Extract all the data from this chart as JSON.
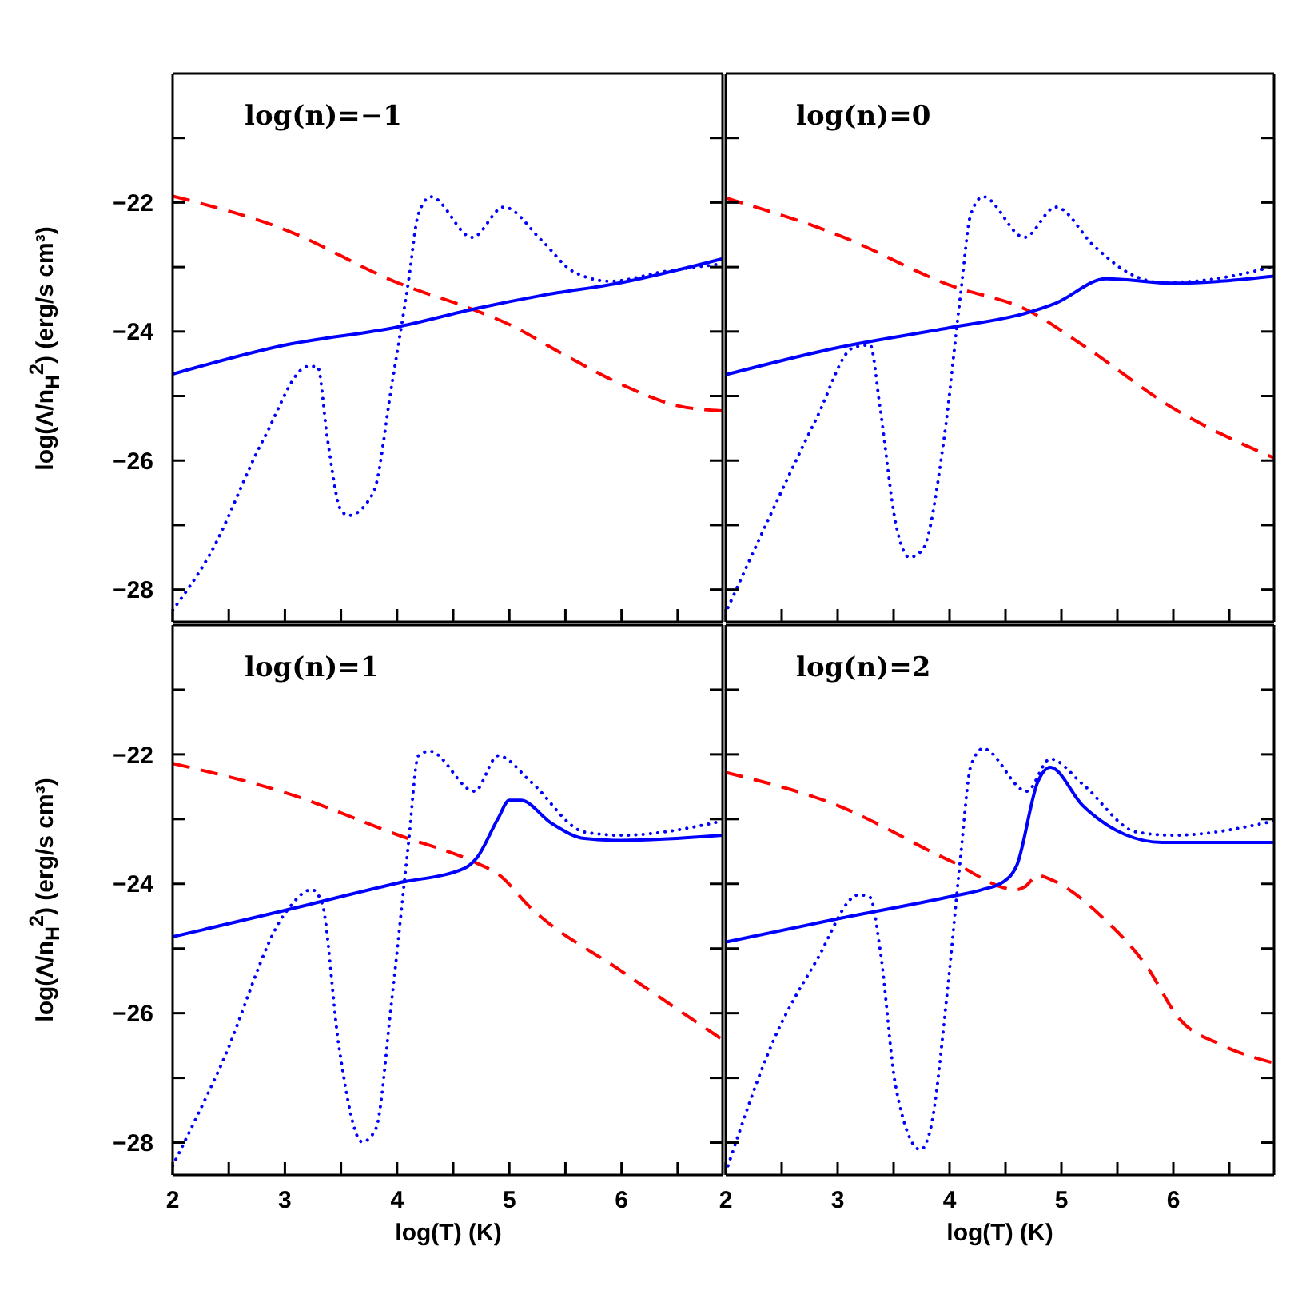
{
  "chart_data": [
    {
      "type": "line",
      "annotations": [
        "log(n)=−1"
      ],
      "ylabel": "log(Λ/n$_{H}$$^{2}$) (erg/s cm³)",
      "tick_labels": "y",
      "xlim": [
        2,
        6.9
      ],
      "xticks": [
        2,
        {
          "value": 2.5,
          "label": null
        },
        3,
        {
          "value": 3.5,
          "label": null
        },
        4,
        {
          "value": 4.5,
          "label": null
        },
        5,
        {
          "value": 5.5,
          "label": null
        },
        6,
        {
          "value": 6.5,
          "label": null
        }
      ],
      "ylim": [
        -28.5,
        -20
      ],
      "yticks": [
        {
          "value": -21,
          "label": null
        },
        -22,
        {
          "value": -23,
          "label": null
        },
        -24,
        {
          "value": -25,
          "label": null
        },
        -26,
        {
          "value": -27,
          "label": null
        },
        -28
      ],
      "series": [
        {
          "color": "#ff0000",
          "line_style": "dashed",
          "x": [
            2,
            3,
            4,
            4.71,
            5,
            5.5,
            6,
            6.5,
            6.9
          ],
          "values": [
            -21.9,
            -22.42,
            -23.24,
            -23.68,
            -23.89,
            -24.37,
            -24.82,
            -25.15,
            -25.23
          ]
        },
        {
          "color": "#0000ff",
          "line_style": "solid",
          "x": [
            2,
            3,
            4,
            4.71,
            5.29,
            6,
            6.9
          ],
          "values": [
            -24.66,
            -24.21,
            -23.93,
            -23.64,
            -23.44,
            -23.24,
            -22.87
          ]
        },
        {
          "color": "#0000ff",
          "line_style": "dotted",
          "x": [
            2,
            2.33,
            2.81,
            3.21,
            3.29,
            3.38,
            3.5,
            3.57,
            3.79,
            3.95,
            4.1,
            4.19,
            4.3,
            4.67,
            4.95,
            5.29,
            5.57,
            5.9,
            6.38,
            6.9
          ],
          "values": [
            -28.32,
            -27.46,
            -25.67,
            -24.54,
            -24.54,
            -25.67,
            -26.77,
            -26.85,
            -26.49,
            -24.86,
            -23.24,
            -22.18,
            -21.91,
            -22.54,
            -22.07,
            -22.59,
            -23.07,
            -23.22,
            -23.07,
            -22.95
          ]
        }
      ]
    },
    {
      "type": "line",
      "annotations": [
        "log(n)=0"
      ],
      "tick_labels": false,
      "xlim": [
        2,
        6.9
      ],
      "xticks": [
        2,
        {
          "value": 2.5,
          "label": null
        },
        3,
        {
          "value": 3.5,
          "label": null
        },
        4,
        {
          "value": 4.5,
          "label": null
        },
        5,
        {
          "value": 5.5,
          "label": null
        },
        6,
        {
          "value": 6.5,
          "label": null
        }
      ],
      "ylim": [
        -28.5,
        -20
      ],
      "yticks": [
        {
          "value": -21,
          "label": null
        },
        -22,
        {
          "value": -23,
          "label": null
        },
        -24,
        {
          "value": -25,
          "label": null
        },
        -26,
        {
          "value": -27,
          "label": null
        },
        -28
      ],
      "series": [
        {
          "color": "#ff0000",
          "line_style": "dashed",
          "x": [
            2,
            3,
            4,
            4.71,
            5.19,
            6,
            6.9
          ],
          "values": [
            -21.93,
            -22.5,
            -23.28,
            -23.68,
            -24.21,
            -25.19,
            -25.96
          ]
        },
        {
          "color": "#0000ff",
          "line_style": "solid",
          "x": [
            2,
            3,
            4,
            4.67,
            4.95,
            5.4,
            6,
            6.9
          ],
          "values": [
            -24.67,
            -24.25,
            -23.94,
            -23.72,
            -23.56,
            -23.18,
            -23.25,
            -23.14
          ]
        },
        {
          "color": "#0000ff",
          "line_style": "dotted",
          "x": [
            2.02,
            2.43,
            2.81,
            3.14,
            3.29,
            3.38,
            3.52,
            3.64,
            3.76,
            3.95,
            4.1,
            4.19,
            4.3,
            4.67,
            4.95,
            5.29,
            5.62,
            5.9,
            6.38,
            6.9
          ],
          "values": [
            -28.28,
            -26.73,
            -25.35,
            -24.25,
            -24.21,
            -25.19,
            -26.98,
            -27.5,
            -27.38,
            -25.67,
            -23.4,
            -22.18,
            -21.91,
            -22.54,
            -22.07,
            -22.67,
            -23.11,
            -23.24,
            -23.18,
            -22.99
          ]
        }
      ]
    },
    {
      "type": "line",
      "annotations": [
        "log(n)=1"
      ],
      "xlabel": "log(T) (K)",
      "ylabel": "log(Λ/n$_{H}$$^{2}$) (erg/s cm³)",
      "xlim": [
        2,
        6.9
      ],
      "xticks": [
        2,
        {
          "value": 2.5,
          "label": null
        },
        3,
        {
          "value": 3.5,
          "label": null
        },
        4,
        {
          "value": 4.5,
          "label": null
        },
        5,
        {
          "value": 5.5,
          "label": null
        },
        6,
        {
          "value": 6.5,
          "label": null
        }
      ],
      "ylim": [
        -28.5,
        -20
      ],
      "yticks": [
        {
          "value": -21,
          "label": null
        },
        -22,
        {
          "value": -23,
          "label": null
        },
        -24,
        {
          "value": -25,
          "label": null
        },
        -26,
        {
          "value": -27,
          "label": null
        },
        -28
      ],
      "series": [
        {
          "color": "#ff0000",
          "line_style": "dashed",
          "x": [
            2,
            3,
            4,
            4.71,
            4.9,
            5.19,
            6,
            6.9
          ],
          "values": [
            -22.14,
            -22.59,
            -23.24,
            -23.68,
            -23.85,
            -24.37,
            -25.35,
            -26.41
          ]
        },
        {
          "color": "#0000ff",
          "line_style": "solid",
          "x": [
            2,
            3,
            4,
            4.6,
            4.71,
            4.9,
            5,
            5.1,
            5.38,
            5.67,
            6,
            6.9
          ],
          "values": [
            -24.82,
            -24.41,
            -23.99,
            -23.76,
            -23.6,
            -22.99,
            -22.71,
            -22.71,
            -23.07,
            -23.3,
            -23.33,
            -23.25
          ]
        },
        {
          "color": "#0000ff",
          "line_style": "dotted",
          "x": [
            2,
            2.43,
            3,
            3.24,
            3.33,
            3.48,
            3.69,
            3.81,
            3.95,
            4.1,
            4.19,
            4.29,
            4.69,
            4.9,
            5.19,
            5.67,
            6,
            6.9
          ],
          "values": [
            -28.36,
            -26.81,
            -24.46,
            -24.09,
            -24.29,
            -26.49,
            -27.99,
            -27.79,
            -25.84,
            -23.4,
            -22.02,
            -21.95,
            -22.57,
            -22.02,
            -22.42,
            -23.2,
            -23.25,
            -23.03
          ]
        }
      ]
    },
    {
      "type": "line",
      "annotations": [
        "log(n)=2"
      ],
      "xlabel": "log(T) (K)",
      "tick_labels": "x",
      "xlim": [
        2,
        6.9
      ],
      "xticks": [
        2,
        {
          "value": 2.5,
          "label": null
        },
        3,
        {
          "value": 3.5,
          "label": null
        },
        4,
        {
          "value": 4.5,
          "label": null
        },
        5,
        {
          "value": 5.5,
          "label": null
        },
        6,
        {
          "value": 6.5,
          "label": null
        }
      ],
      "ylim": [
        -28.5,
        -20
      ],
      "yticks": [
        {
          "value": -21,
          "label": null
        },
        -22,
        {
          "value": -23,
          "label": null
        },
        -24,
        {
          "value": -25,
          "label": null
        },
        -26,
        {
          "value": -27,
          "label": null
        },
        -28
      ],
      "series": [
        {
          "color": "#ff0000",
          "line_style": "dashed",
          "x": [
            2,
            3,
            4,
            4.6,
            4.67,
            4.79,
            4.9,
            5.38,
            5.76,
            6.05,
            6.43,
            6.9
          ],
          "values": [
            -22.28,
            -22.79,
            -23.64,
            -24.09,
            -24.05,
            -23.87,
            -23.93,
            -24.54,
            -25.27,
            -26.08,
            -26.49,
            -26.77
          ]
        },
        {
          "color": "#0000ff",
          "line_style": "solid",
          "x": [
            2,
            3,
            4,
            4.29,
            4.48,
            4.6,
            4.79,
            4.9,
            5.19,
            5.57,
            5.9,
            6.9
          ],
          "values": [
            -24.9,
            -24.54,
            -24.2,
            -24.09,
            -23.97,
            -23.72,
            -22.42,
            -22.2,
            -22.79,
            -23.24,
            -23.36,
            -23.36
          ]
        },
        {
          "color": "#0000ff",
          "line_style": "dotted",
          "x": [
            2.02,
            2.43,
            2.81,
            3.19,
            3.29,
            3.38,
            3.52,
            3.74,
            3.83,
            3.98,
            4.1,
            4.19,
            4.3,
            4.69,
            4.9,
            5.19,
            5.67,
            6,
            6.9
          ],
          "values": [
            -28.36,
            -26.41,
            -25.19,
            -24.17,
            -24.21,
            -25.02,
            -27.14,
            -28.11,
            -27.79,
            -25.67,
            -23.56,
            -22.18,
            -21.91,
            -22.57,
            -22.07,
            -22.46,
            -23.2,
            -23.25,
            -23.03
          ]
        }
      ]
    }
  ]
}
